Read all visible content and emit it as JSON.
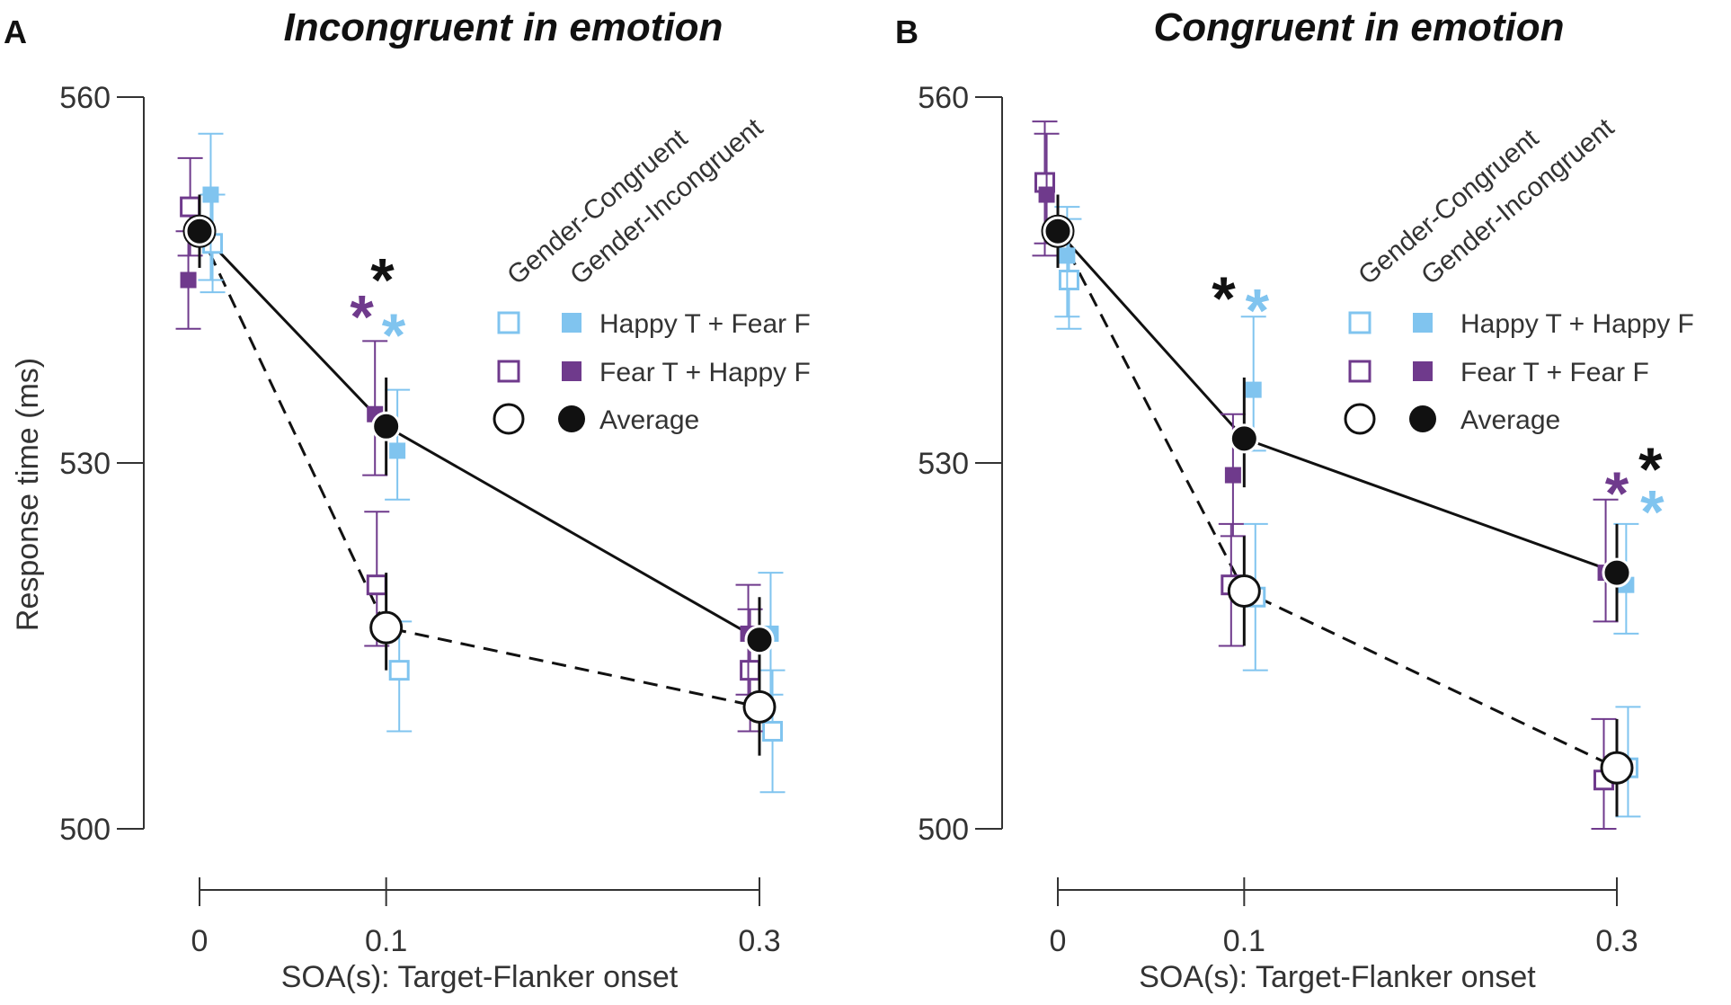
{
  "colors": {
    "light_blue": "#80c4ef",
    "purple": "#6f3a8c",
    "black": "#111111"
  },
  "chart_data": [
    {
      "type": "line",
      "panel_label": "A",
      "title": "Incongruent in emotion",
      "xlabel": "SOA(s): Target-Flanker onset",
      "ylabel": "Response time (ms)",
      "ylim": [
        500,
        560
      ],
      "yticks": [
        "500",
        "530",
        "560"
      ],
      "xticks": [
        "0",
        "0.1",
        "0.3"
      ],
      "x": [
        0,
        0.1,
        0.3
      ],
      "column_headers": [
        "Gender-Congruent",
        "Gender-Incongruent"
      ],
      "legend": [
        {
          "label": "Happy T + Fear F",
          "color": "light_blue",
          "marker": "square"
        },
        {
          "label": "Fear T + Happy F",
          "color": "purple",
          "marker": "square"
        },
        {
          "label": "Average",
          "color": "black",
          "marker": "circle"
        }
      ],
      "series": [
        {
          "name": "Happy T + Fear F (Gender-Congruent)",
          "style": "open-square",
          "color": "light_blue",
          "offset": 0.007,
          "values": [
            548,
            513,
            508
          ],
          "err_low": [
            544,
            508,
            503
          ],
          "err_high": [
            552,
            517,
            513
          ]
        },
        {
          "name": "Happy T + Fear F (Gender-Incongruent)",
          "style": "filled-square",
          "color": "light_blue",
          "offset": 0.006,
          "values": [
            552,
            531,
            516
          ],
          "err_low": [
            545,
            527,
            511
          ],
          "err_high": [
            557,
            536,
            521
          ]
        },
        {
          "name": "Fear T + Happy F (Gender-Congruent)",
          "style": "open-square",
          "color": "purple",
          "offset": -0.005,
          "values": [
            551,
            520,
            513
          ],
          "err_low": [
            547,
            515,
            508
          ],
          "err_high": [
            555,
            526,
            518
          ]
        },
        {
          "name": "Fear T + Happy F (Gender-Incongruent)",
          "style": "filled-square",
          "color": "purple",
          "offset": -0.006,
          "values": [
            545,
            534,
            516
          ],
          "err_low": [
            541,
            529,
            511
          ],
          "err_high": [
            549,
            540,
            520
          ]
        },
        {
          "name": "Average (Gender-Congruent)",
          "style": "open-circle",
          "color": "black",
          "line": "dashed",
          "offset": 0,
          "values": [
            549,
            516.5,
            510
          ],
          "err_low": [
            546,
            513,
            506
          ],
          "err_high": [
            552,
            521,
            514
          ]
        },
        {
          "name": "Average (Gender-Incongruent)",
          "style": "filled-circle",
          "color": "black",
          "line": "solid",
          "offset": 0,
          "values": [
            549,
            533,
            515.5
          ],
          "err_low": [
            546,
            529,
            512
          ],
          "err_high": [
            552,
            537,
            519
          ]
        }
      ],
      "annotations": [
        {
          "text": "*",
          "color": "purple",
          "x": 0.087,
          "y": 542.5
        },
        {
          "text": "*",
          "color": "black",
          "x": 0.098,
          "y": 545.5
        },
        {
          "text": "*",
          "color": "light_blue",
          "x": 0.104,
          "y": 541
        }
      ]
    },
    {
      "type": "line",
      "panel_label": "B",
      "title": "Congruent in emotion",
      "xlabel": "SOA(s): Target-Flanker onset",
      "ylabel": "",
      "ylim": [
        500,
        560
      ],
      "yticks": [
        "500",
        "530",
        "560"
      ],
      "xticks": [
        "0",
        "0.1",
        "0.3"
      ],
      "x": [
        0,
        0.1,
        0.3
      ],
      "column_headers": [
        "Gender-Congruent",
        "Gender-Incongruent"
      ],
      "legend": [
        {
          "label": "Happy T + Happy F",
          "color": "light_blue",
          "marker": "square"
        },
        {
          "label": "Fear T + Fear F",
          "color": "purple",
          "marker": "square"
        },
        {
          "label": "Average",
          "color": "black",
          "marker": "circle"
        }
      ],
      "series": [
        {
          "name": "Happy T + Happy F (Gender-Congruent)",
          "style": "open-square",
          "color": "light_blue",
          "offset": 0.006,
          "values": [
            545,
            519,
            505
          ],
          "err_low": [
            541,
            513,
            501
          ],
          "err_high": [
            550,
            525,
            510
          ]
        },
        {
          "name": "Happy T + Happy F (Gender-Incongruent)",
          "style": "filled-square",
          "color": "light_blue",
          "offset": 0.005,
          "values": [
            547,
            536,
            520
          ],
          "err_low": [
            542,
            531,
            516
          ],
          "err_high": [
            551,
            542,
            525
          ]
        },
        {
          "name": "Fear T + Fear F (Gender-Congruent)",
          "style": "open-square",
          "color": "purple",
          "offset": -0.007,
          "values": [
            553,
            520,
            504
          ],
          "err_low": [
            547,
            515,
            500
          ],
          "err_high": [
            558,
            525,
            509
          ]
        },
        {
          "name": "Fear T + Fear F (Gender-Incongruent)",
          "style": "filled-square",
          "color": "purple",
          "offset": -0.006,
          "values": [
            552,
            529,
            521
          ],
          "err_low": [
            548,
            524,
            517
          ],
          "err_high": [
            557,
            534,
            527
          ]
        },
        {
          "name": "Average (Gender-Congruent)",
          "style": "open-circle",
          "color": "black",
          "line": "dashed",
          "offset": 0,
          "values": [
            549,
            519.5,
            505
          ],
          "err_low": [
            546,
            515,
            501
          ],
          "err_high": [
            552,
            524,
            509
          ]
        },
        {
          "name": "Average (Gender-Incongruent)",
          "style": "filled-circle",
          "color": "black",
          "line": "solid",
          "offset": 0,
          "values": [
            549,
            532,
            521
          ],
          "err_low": [
            546,
            528,
            517
          ],
          "err_high": [
            552,
            537,
            525
          ]
        }
      ],
      "annotations": [
        {
          "text": "*",
          "color": "black",
          "x": 0.089,
          "y": 544
        },
        {
          "text": "*",
          "color": "light_blue",
          "x": 0.107,
          "y": 543
        },
        {
          "text": "*",
          "color": "purple",
          "x": 0.3,
          "y": 528
        },
        {
          "text": "*",
          "color": "black",
          "x": 0.318,
          "y": 530
        },
        {
          "text": "*",
          "color": "light_blue",
          "x": 0.319,
          "y": 526.5
        }
      ]
    }
  ]
}
